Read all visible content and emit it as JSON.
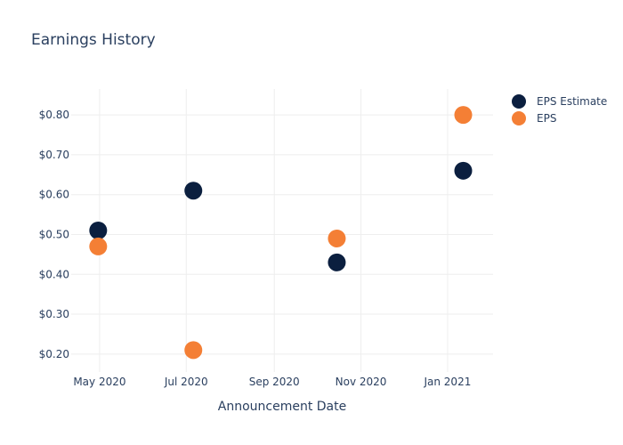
{
  "chart_data": {
    "type": "scatter",
    "title": "Earnings History",
    "xlabel": "Announcement Date",
    "ylabel": "",
    "x_ticks": [
      "May 2020",
      "Jul 2020",
      "Sep 2020",
      "Nov 2020",
      "Jan 2021"
    ],
    "x_tick_dates": [
      "2020-05-01",
      "2020-07-01",
      "2020-09-01",
      "2020-11-01",
      "2021-01-01"
    ],
    "x_range": [
      "2020-04-11",
      "2021-02-02"
    ],
    "y_ticks": [
      "$0.20",
      "$0.30",
      "$0.40",
      "$0.50",
      "$0.60",
      "$0.70",
      "$0.80"
    ],
    "y_tick_values": [
      0.2,
      0.3,
      0.4,
      0.5,
      0.6,
      0.7,
      0.8
    ],
    "ylim": [
      0.155,
      0.865
    ],
    "grid": true,
    "legend_position": "top-right",
    "series": [
      {
        "name": "EPS Estimate",
        "color": "#0b1f3f",
        "points": [
          {
            "x": "2020-04-30",
            "y": 0.51
          },
          {
            "x": "2020-07-06",
            "y": 0.61
          },
          {
            "x": "2020-10-15",
            "y": 0.43
          },
          {
            "x": "2021-01-12",
            "y": 0.66
          }
        ]
      },
      {
        "name": "EPS",
        "color": "#f47f35",
        "points": [
          {
            "x": "2020-04-30",
            "y": 0.47
          },
          {
            "x": "2020-07-06",
            "y": 0.21
          },
          {
            "x": "2020-10-15",
            "y": 0.49
          },
          {
            "x": "2021-01-12",
            "y": 0.8
          }
        ]
      }
    ]
  }
}
